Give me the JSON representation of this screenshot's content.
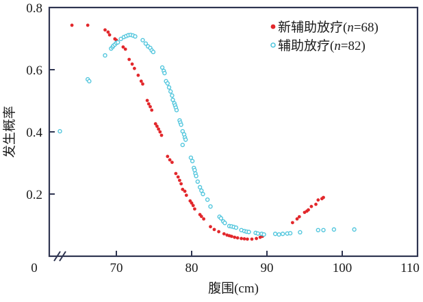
{
  "figure": {
    "x_axis_label": "腹围(cm)",
    "y_axis_label": "发生概率",
    "origin_label": "0"
  },
  "legend": [
    {
      "marker": "filled-dot",
      "color": "#e2282c",
      "prefix": "新辅助放疗(",
      "var": "n",
      "suffix": "=68)"
    },
    {
      "marker": "open-circle",
      "color": "#52c6dd",
      "prefix": "辅助放疗(",
      "var": "n",
      "suffix": "=82)"
    }
  ],
  "colors": {
    "frame": "#2e3450",
    "neoadjuvant": "#e2282c",
    "adjuvant": "#52c6dd",
    "text": "#1b1b1b"
  },
  "chart_data": {
    "type": "scatter",
    "title": "",
    "xlabel": "腹围(cm)",
    "ylabel": "发生概率",
    "xlim": [
      0,
      110
    ],
    "ylim": [
      0,
      0.8
    ],
    "x_ticks": [
      70,
      80,
      90,
      100,
      110
    ],
    "y_ticks": [
      0.2,
      0.4,
      0.6,
      0.8
    ],
    "x_axis_break": true,
    "grid": false,
    "legend_position": "top-right",
    "series": [
      {
        "name": "新辅助放疗(n=68)",
        "n": 68,
        "marker": "filled-dot",
        "color": "#e2282c",
        "points": [
          [
            64.1,
            0.743
          ],
          [
            66.2,
            0.743
          ],
          [
            68.5,
            0.728
          ],
          [
            68.9,
            0.721
          ],
          [
            69.1,
            0.712
          ],
          [
            69.8,
            0.699
          ],
          [
            70.0,
            0.695
          ],
          [
            70.9,
            0.673
          ],
          [
            71.2,
            0.666
          ],
          [
            71.7,
            0.633
          ],
          [
            72.1,
            0.618
          ],
          [
            72.4,
            0.604
          ],
          [
            72.9,
            0.582
          ],
          [
            73.3,
            0.563
          ],
          [
            73.5,
            0.554
          ],
          [
            74.1,
            0.501
          ],
          [
            74.3,
            0.49
          ],
          [
            74.5,
            0.481
          ],
          [
            74.7,
            0.47
          ],
          [
            75.2,
            0.426
          ],
          [
            75.4,
            0.418
          ],
          [
            75.6,
            0.409
          ],
          [
            75.8,
            0.4
          ],
          [
            76.0,
            0.389
          ],
          [
            76.8,
            0.321
          ],
          [
            77.1,
            0.31
          ],
          [
            77.4,
            0.302
          ],
          [
            77.9,
            0.266
          ],
          [
            78.2,
            0.255
          ],
          [
            78.4,
            0.244
          ],
          [
            78.6,
            0.233
          ],
          [
            78.8,
            0.215
          ],
          [
            79.1,
            0.209
          ],
          [
            79.3,
            0.196
          ],
          [
            79.8,
            0.178
          ],
          [
            80.0,
            0.171
          ],
          [
            80.2,
            0.163
          ],
          [
            80.4,
            0.152
          ],
          [
            81.1,
            0.134
          ],
          [
            81.3,
            0.128
          ],
          [
            81.6,
            0.12
          ],
          [
            82.5,
            0.095
          ],
          [
            83.0,
            0.086
          ],
          [
            83.6,
            0.079
          ],
          [
            84.3,
            0.072
          ],
          [
            84.7,
            0.068
          ],
          [
            85.0,
            0.066
          ],
          [
            85.3,
            0.064
          ],
          [
            85.7,
            0.061
          ],
          [
            86.1,
            0.059
          ],
          [
            86.6,
            0.057
          ],
          [
            87.0,
            0.056
          ],
          [
            87.4,
            0.055
          ],
          [
            88.0,
            0.055
          ],
          [
            88.6,
            0.057
          ],
          [
            89.1,
            0.061
          ],
          [
            89.4,
            0.064
          ],
          [
            93.4,
            0.108
          ],
          [
            94.0,
            0.12
          ],
          [
            94.3,
            0.127
          ],
          [
            95.0,
            0.141
          ],
          [
            95.3,
            0.145
          ],
          [
            95.5,
            0.149
          ],
          [
            95.9,
            0.16
          ],
          [
            96.5,
            0.167
          ],
          [
            96.8,
            0.181
          ],
          [
            97.3,
            0.185
          ],
          [
            97.5,
            0.189
          ]
        ]
      },
      {
        "name": "辅助放疗(n=82)",
        "n": 82,
        "marker": "open-circle",
        "color": "#52c6dd",
        "points": [
          [
            62.5,
            0.402
          ],
          [
            66.2,
            0.569
          ],
          [
            66.4,
            0.563
          ],
          [
            68.5,
            0.646
          ],
          [
            69.3,
            0.668
          ],
          [
            69.5,
            0.673
          ],
          [
            69.6,
            0.677
          ],
          [
            69.8,
            0.681
          ],
          [
            70.0,
            0.686
          ],
          [
            70.2,
            0.688
          ],
          [
            70.6,
            0.699
          ],
          [
            71.0,
            0.705
          ],
          [
            71.3,
            0.708
          ],
          [
            71.6,
            0.711
          ],
          [
            71.9,
            0.712
          ],
          [
            72.2,
            0.71
          ],
          [
            72.5,
            0.707
          ],
          [
            73.5,
            0.695
          ],
          [
            73.9,
            0.684
          ],
          [
            74.2,
            0.675
          ],
          [
            74.5,
            0.67
          ],
          [
            74.7,
            0.662
          ],
          [
            74.9,
            0.657
          ],
          [
            76.1,
            0.607
          ],
          [
            76.3,
            0.596
          ],
          [
            76.4,
            0.589
          ],
          [
            76.6,
            0.563
          ],
          [
            76.8,
            0.556
          ],
          [
            77.0,
            0.543
          ],
          [
            77.2,
            0.53
          ],
          [
            77.4,
            0.517
          ],
          [
            77.5,
            0.503
          ],
          [
            77.7,
            0.492
          ],
          [
            77.8,
            0.485
          ],
          [
            77.9,
            0.478
          ],
          [
            78.0,
            0.47
          ],
          [
            78.4,
            0.437
          ],
          [
            78.5,
            0.43
          ],
          [
            78.6,
            0.423
          ],
          [
            78.8,
            0.402
          ],
          [
            79.0,
            0.392
          ],
          [
            79.1,
            0.382
          ],
          [
            79.2,
            0.375
          ],
          [
            78.8,
            0.358
          ],
          [
            79.9,
            0.317
          ],
          [
            80.1,
            0.306
          ],
          [
            80.3,
            0.284
          ],
          [
            80.4,
            0.277
          ],
          [
            80.5,
            0.266
          ],
          [
            80.6,
            0.258
          ],
          [
            80.8,
            0.24
          ],
          [
            81.1,
            0.222
          ],
          [
            81.3,
            0.211
          ],
          [
            81.5,
            0.2
          ],
          [
            82.1,
            0.182
          ],
          [
            82.5,
            0.16
          ],
          [
            83.7,
            0.127
          ],
          [
            83.9,
            0.122
          ],
          [
            84.2,
            0.112
          ],
          [
            84.4,
            0.107
          ],
          [
            85.0,
            0.097
          ],
          [
            85.3,
            0.096
          ],
          [
            85.6,
            0.094
          ],
          [
            85.9,
            0.092
          ],
          [
            86.6,
            0.084
          ],
          [
            87.0,
            0.081
          ],
          [
            87.3,
            0.079
          ],
          [
            87.6,
            0.078
          ],
          [
            88.5,
            0.075
          ],
          [
            88.8,
            0.073
          ],
          [
            89.3,
            0.072
          ],
          [
            89.6,
            0.07
          ],
          [
            91.1,
            0.072
          ],
          [
            91.6,
            0.07
          ],
          [
            92.1,
            0.072
          ],
          [
            92.7,
            0.073
          ],
          [
            93.1,
            0.074
          ],
          [
            94.4,
            0.077
          ],
          [
            96.8,
            0.084
          ],
          [
            97.5,
            0.084
          ],
          [
            98.9,
            0.086
          ],
          [
            101.6,
            0.086
          ]
        ]
      }
    ]
  }
}
